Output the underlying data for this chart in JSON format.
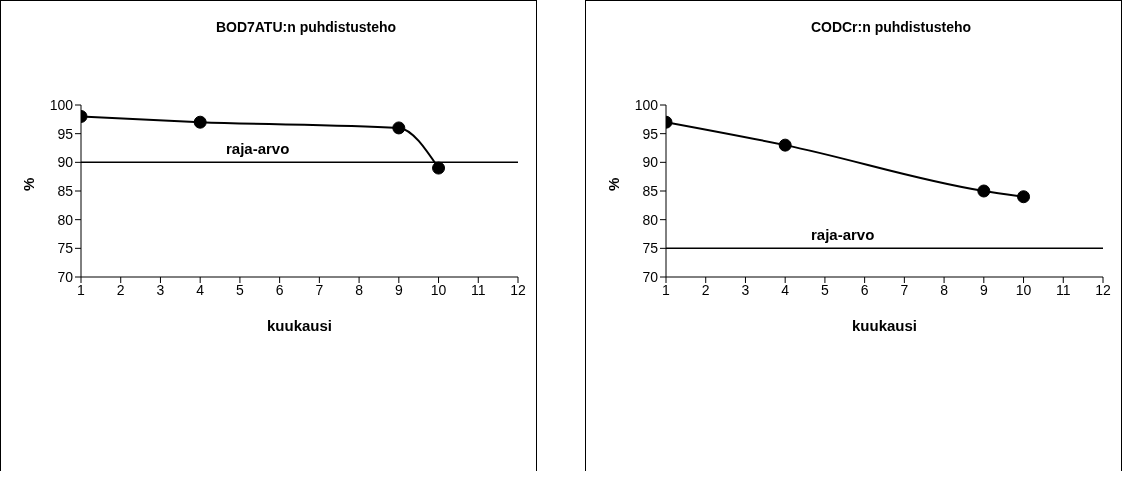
{
  "chart_data": [
    {
      "type": "line",
      "title": "BOD7ATU:n puhdistusteho",
      "xlabel": "kuukausi",
      "ylabel": "%",
      "x": [
        1,
        4,
        9,
        10
      ],
      "series": [
        {
          "color": "#000000",
          "values": [
            98,
            97,
            96,
            89
          ]
        }
      ],
      "xlim": [
        1,
        12
      ],
      "xticks": [
        1,
        2,
        3,
        4,
        5,
        6,
        7,
        8,
        9,
        10,
        11,
        12
      ],
      "ylim": [
        70,
        100
      ],
      "yticks": [
        70,
        75,
        80,
        85,
        90,
        95,
        100
      ],
      "ref_lines": [
        {
          "axis": "y",
          "value": 90,
          "label": "raja-arvo"
        }
      ],
      "marker": "circle"
    },
    {
      "type": "line",
      "title": "CODCr:n puhdistusteho",
      "xlabel": "kuukausi",
      "ylabel": "%",
      "x": [
        1,
        4,
        9,
        10
      ],
      "series": [
        {
          "color": "#000000",
          "values": [
            97,
            93,
            85,
            84
          ]
        }
      ],
      "xlim": [
        1,
        12
      ],
      "xticks": [
        1,
        2,
        3,
        4,
        5,
        6,
        7,
        8,
        9,
        10,
        11,
        12
      ],
      "ylim": [
        70,
        100
      ],
      "yticks": [
        70,
        75,
        80,
        85,
        90,
        95,
        100
      ],
      "ref_lines": [
        {
          "axis": "y",
          "value": 75,
          "label": "raja-arvo"
        }
      ],
      "marker": "circle"
    }
  ]
}
